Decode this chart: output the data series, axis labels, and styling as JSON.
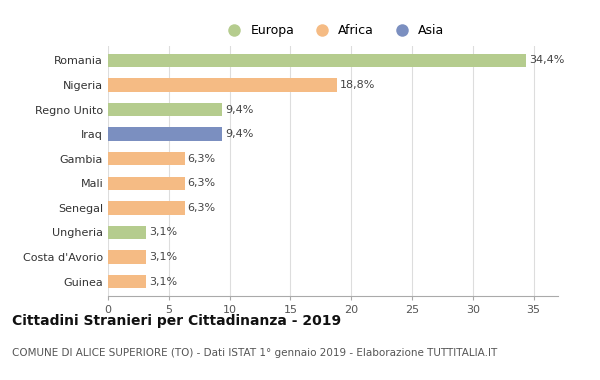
{
  "categories": [
    "Guinea",
    "Costa d'Avorio",
    "Ungheria",
    "Senegal",
    "Mali",
    "Gambia",
    "Iraq",
    "Regno Unito",
    "Nigeria",
    "Romania"
  ],
  "values": [
    3.1,
    3.1,
    3.1,
    6.3,
    6.3,
    6.3,
    9.4,
    9.4,
    18.8,
    34.4
  ],
  "labels": [
    "3,1%",
    "3,1%",
    "3,1%",
    "6,3%",
    "6,3%",
    "6,3%",
    "9,4%",
    "9,4%",
    "18,8%",
    "34,4%"
  ],
  "colors": [
    "#f5bb84",
    "#f5bb84",
    "#b5cc8e",
    "#f5bb84",
    "#f5bb84",
    "#f5bb84",
    "#7b8fc0",
    "#b5cc8e",
    "#f5bb84",
    "#b5cc8e"
  ],
  "continent_colors": {
    "Europa": "#b5cc8e",
    "Africa": "#f5bb84",
    "Asia": "#7b8fc0"
  },
  "legend_labels": [
    "Europa",
    "Africa",
    "Asia"
  ],
  "title": "Cittadini Stranieri per Cittadinanza - 2019",
  "subtitle": "COMUNE DI ALICE SUPERIORE (TO) - Dati ISTAT 1° gennaio 2019 - Elaborazione TUTTITALIA.IT",
  "xlim": [
    0,
    37
  ],
  "xticks": [
    0,
    5,
    10,
    15,
    20,
    25,
    30,
    35
  ],
  "background_color": "#ffffff",
  "bar_height": 0.55,
  "title_fontsize": 10,
  "subtitle_fontsize": 7.5,
  "label_fontsize": 8,
  "tick_fontsize": 8
}
